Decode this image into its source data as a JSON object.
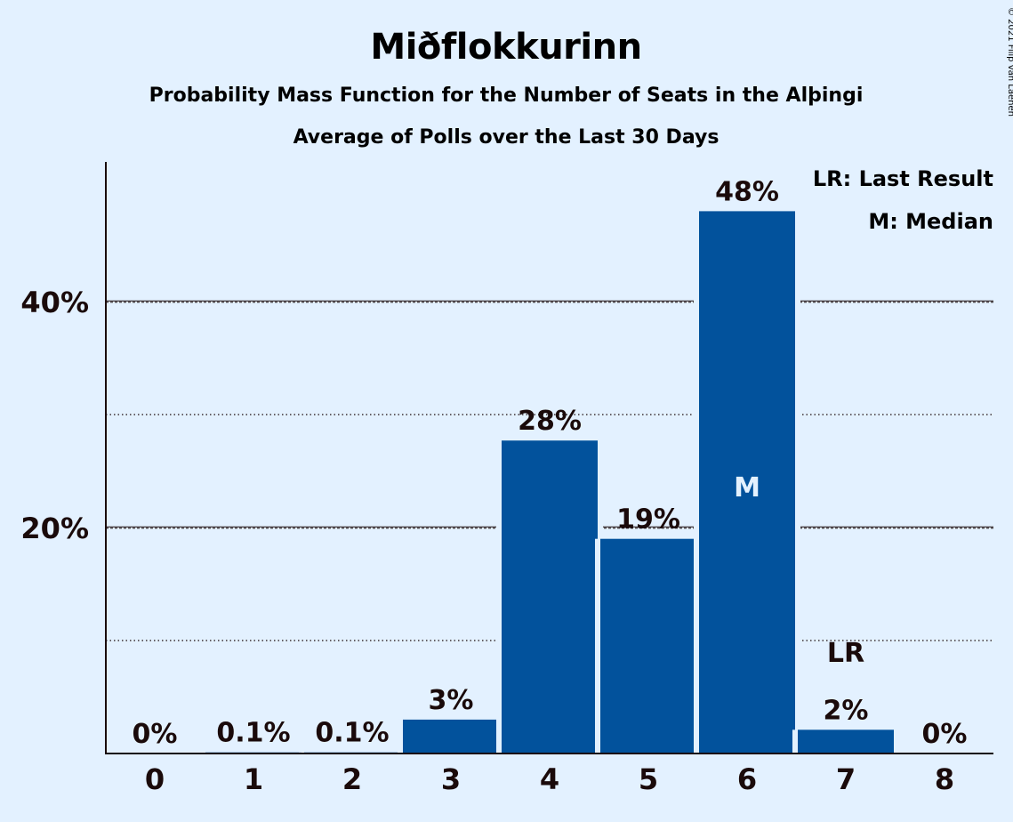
{
  "chart_data": {
    "type": "bar",
    "title": "Miðflokkurinn",
    "subtitle": "Probability Mass Function for the Number of Seats in the Alþingi",
    "subtitle2": "Average of Polls over the Last 30 Days",
    "categories": [
      "0",
      "1",
      "2",
      "3",
      "4",
      "5",
      "6",
      "7",
      "8"
    ],
    "values": [
      0,
      0.1,
      0.1,
      3,
      27.7,
      19,
      48,
      2.1,
      0
    ],
    "value_labels": [
      "0%",
      "0.1%",
      "0.1%",
      "3%",
      "28%",
      "19%",
      "48%",
      "2%",
      "0%"
    ],
    "ylim": [
      0,
      52
    ],
    "yticks": [
      {
        "value": 20,
        "label": "20%"
      },
      {
        "value": 40,
        "label": "40%"
      }
    ],
    "minor_gridlines": [
      10,
      30
    ],
    "median_index": 6,
    "median_marker": "M",
    "last_result_index": 7,
    "last_result_marker": "LR",
    "legend": [
      "LR: Last Result",
      "M: Median"
    ],
    "legend_position": "top-right",
    "copyright": "© 2021 Filip van Laenen",
    "colors": {
      "background": "#e3f1ff",
      "bar": "#02529c",
      "text": "#1a0a0a",
      "bar_text": "#e3f1ff"
    }
  }
}
